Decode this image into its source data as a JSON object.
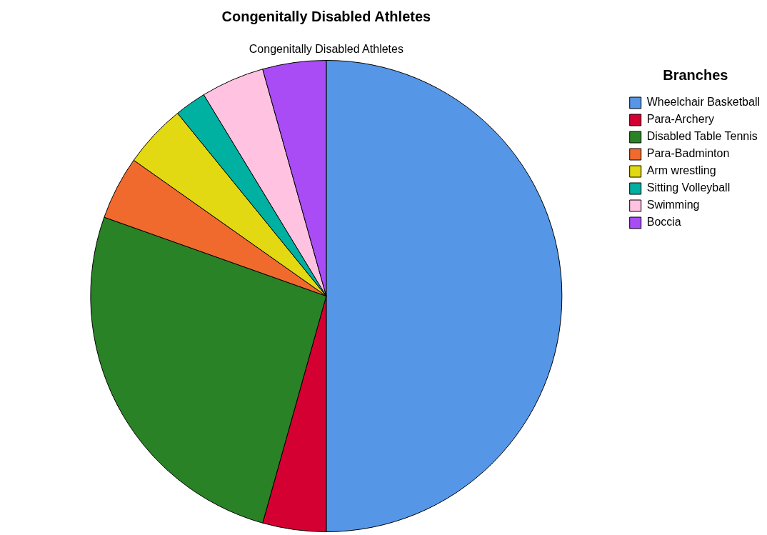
{
  "chart_data": {
    "type": "pie",
    "title": "Congenitally Disabled Athletes",
    "subtitle": "Congenitally Disabled Athletes",
    "legend_title": "Branches",
    "legend": "top right",
    "categories": [
      "Wheelchair Basketball",
      "Para-Archery",
      "Disabled Table Tennis",
      "Para-Badminton",
      "Arm wrestling",
      "Sitting Volleyball",
      "Swimming",
      "Boccia"
    ],
    "values": [
      50,
      4.35,
      26.08,
      4.35,
      4.35,
      2.17,
      4.35,
      4.35
    ],
    "colors": [
      "#5596e6",
      "#d50032",
      "#2a8226",
      "#f06a2d",
      "#e3d912",
      "#00b0a0",
      "#ffc3e1",
      "#a94cf5"
    ]
  }
}
